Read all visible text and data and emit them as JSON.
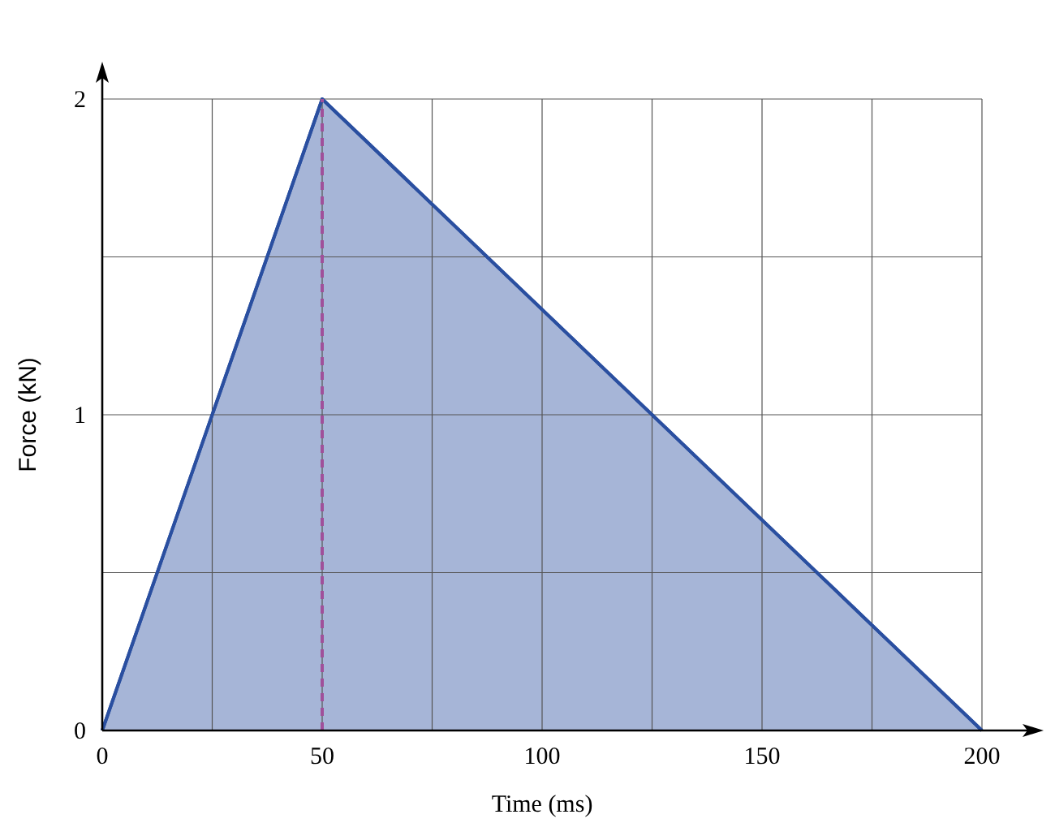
{
  "chart_data": {
    "type": "area",
    "xlabel": "Time (ms)",
    "ylabel": "Force (kN)",
    "x": [
      0,
      50,
      200
    ],
    "series": [
      {
        "color": "#2a4fa0",
        "values": [
          0,
          2,
          0
        ]
      }
    ],
    "xlim": [
      0,
      200
    ],
    "ylim": [
      0,
      2
    ],
    "xticks": [
      0,
      {
        "value": 25,
        "label": null
      },
      50,
      {
        "value": 75,
        "label": null
      },
      100,
      {
        "value": 125,
        "label": null
      },
      150,
      {
        "value": 175,
        "label": null
      },
      200
    ],
    "yticks": [
      0,
      {
        "value": 0.5,
        "label": null
      },
      1,
      {
        "value": 1.5,
        "label": null
      },
      2
    ],
    "grid": true,
    "ref_lines": [
      {
        "axis": "x",
        "value": 50,
        "color": "#a0509a",
        "line_style": "dashed"
      }
    ]
  }
}
